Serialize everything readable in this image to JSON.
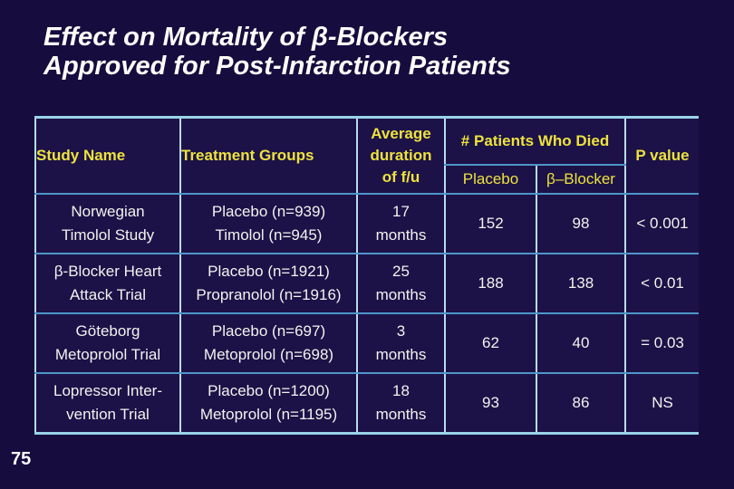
{
  "slide": {
    "title": "Effect on Mortality of β-Blockers\nApproved for Post-Infarction Patients",
    "page_number": "75"
  },
  "colors": {
    "background": "#160c3e",
    "table_background": "#1c1247",
    "title_text": "#fdfdf8",
    "header_text": "#ede23e",
    "cell_text": "#f4f2ee",
    "vertical_line": "#b9dcec",
    "horizontal_line": "#4d96c8",
    "outer_border": "#9ad2e8"
  },
  "table": {
    "headers": {
      "study_name": "Study Name",
      "treatment_groups": "Treatment Groups",
      "avg_duration": "Average\nduration\nof f/u",
      "patients_died": "# Patients Who Died",
      "placebo": "Placebo",
      "beta_blocker": "β–Blocker",
      "p_value": "P value"
    },
    "rows": [
      {
        "study": "Norwegian\nTimolol Study",
        "treatment": "Placebo (n=939)\nTimolol (n=945)",
        "duration": "17\nmonths",
        "placebo_died": "152",
        "beta_died": "98",
        "p": "< 0.001"
      },
      {
        "study": "β-Blocker Heart\nAttack Trial",
        "treatment": "Placebo (n=1921)\nPropranolol (n=1916)",
        "duration": "25\nmonths",
        "placebo_died": "188",
        "beta_died": "138",
        "p": "< 0.01"
      },
      {
        "study": "Göteborg\nMetoprolol Trial",
        "treatment": "Placebo (n=697)\nMetoprolol (n=698)",
        "duration": "3\nmonths",
        "placebo_died": "62",
        "beta_died": "40",
        "p": "= 0.03"
      },
      {
        "study": "Lopressor Inter-\nvention Trial",
        "treatment": "Placebo (n=1200)\nMetoprolol (n=1195)",
        "duration": "18\nmonths",
        "placebo_died": "93",
        "beta_died": "86",
        "p": "NS"
      }
    ]
  }
}
